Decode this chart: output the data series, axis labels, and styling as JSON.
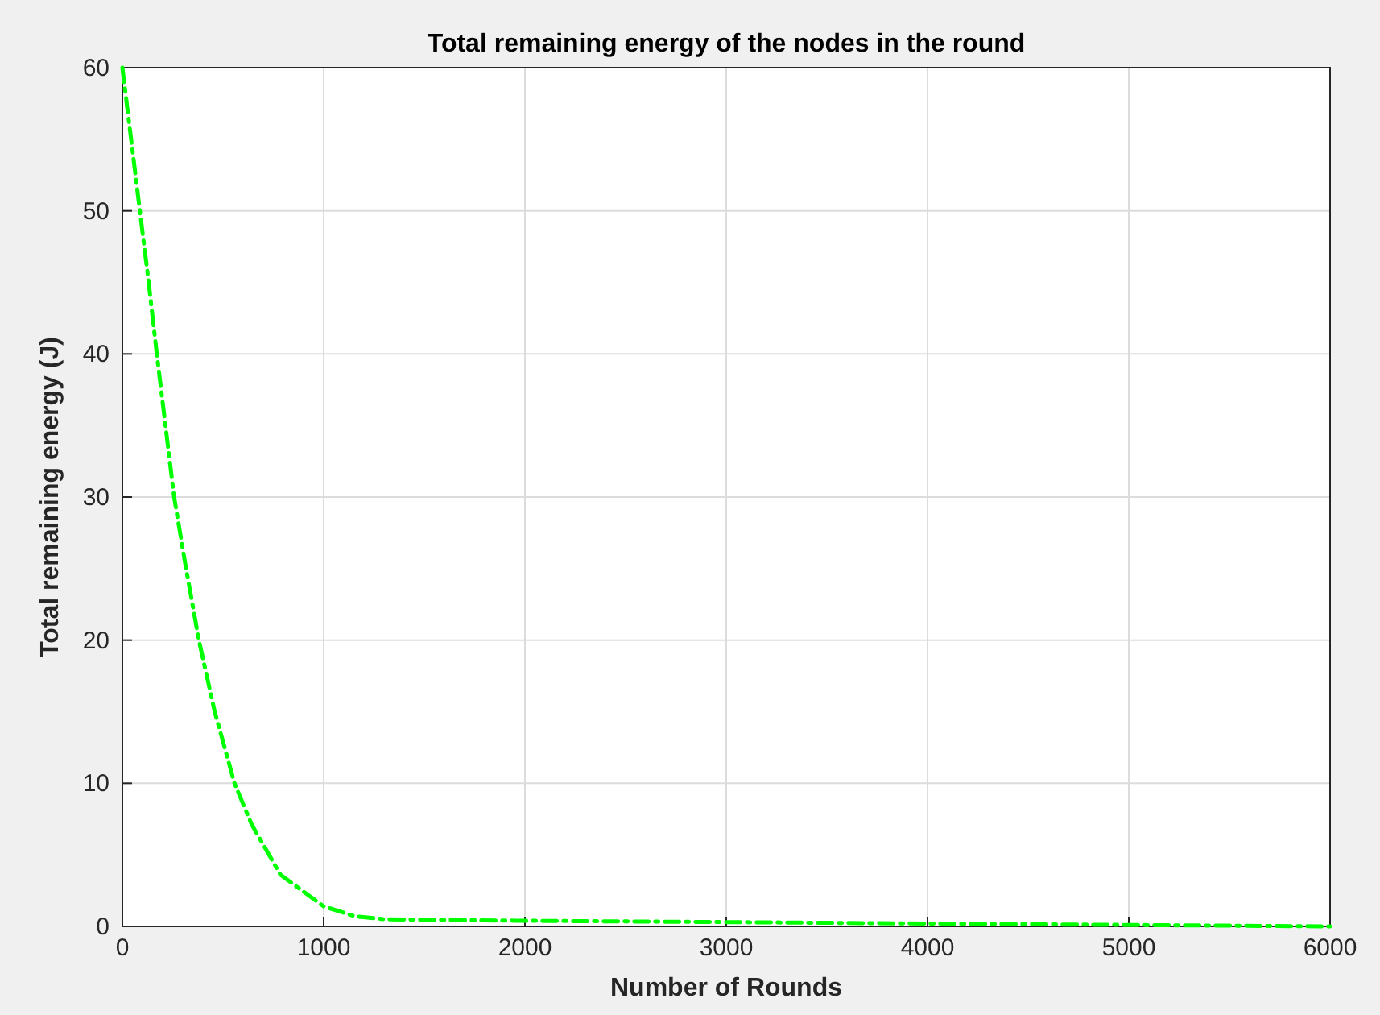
{
  "chart_data": {
    "type": "line",
    "title": "Total remaining energy of the nodes in the round",
    "xlabel": "Number of Rounds",
    "ylabel": "Total remaining energy (J)",
    "x": [
      0,
      86,
      129,
      171,
      214,
      257,
      314,
      380,
      457,
      557,
      643,
      786,
      1000,
      1157,
      1300,
      1950,
      3000,
      4000,
      5000,
      6000
    ],
    "series": [
      {
        "color": "#00ff00",
        "values": [
          60,
          50.1,
          45.2,
          40,
          35,
          30,
          25.2,
          20,
          15.1,
          10,
          7.1,
          3.6,
          1.4,
          0.7,
          0.5,
          0.4,
          0.3,
          0.2,
          0.1,
          0
        ]
      }
    ],
    "xlim": [
      0,
      6000
    ],
    "xticks": [
      0,
      1000,
      2000,
      3000,
      4000,
      5000,
      6000
    ],
    "ylim": [
      0,
      60
    ],
    "yticks": [
      0,
      10,
      20,
      30,
      40,
      50,
      60
    ],
    "grid": true,
    "marker": "none",
    "line_style": "dashed"
  }
}
